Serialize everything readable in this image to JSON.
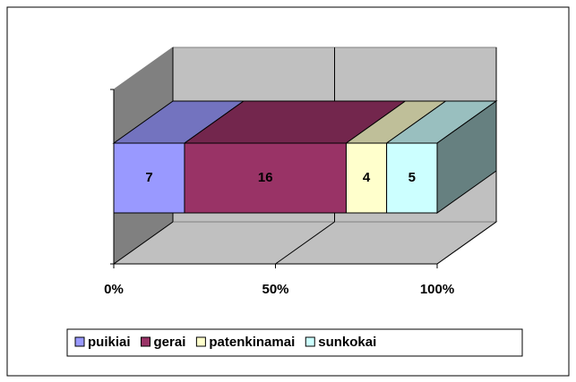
{
  "chart_data": {
    "type": "bar",
    "orientation": "horizontal",
    "stacking": "percent",
    "series": [
      {
        "name": "puikiai",
        "color": "#9999ff",
        "values": [
          7
        ]
      },
      {
        "name": "gerai",
        "color": "#993366",
        "values": [
          16
        ]
      },
      {
        "name": "patenkinamai",
        "color": "#ffffcc",
        "values": [
          4
        ]
      },
      {
        "name": "sunkokai",
        "color": "#ccffff",
        "values": [
          5
        ]
      }
    ],
    "xlim": [
      0,
      100
    ],
    "xticks": [
      {
        "value": 0,
        "label": "0%"
      },
      {
        "value": 50,
        "label": "50%"
      },
      {
        "value": 100,
        "label": "100%"
      }
    ],
    "grid": true,
    "legend": "bottom"
  }
}
